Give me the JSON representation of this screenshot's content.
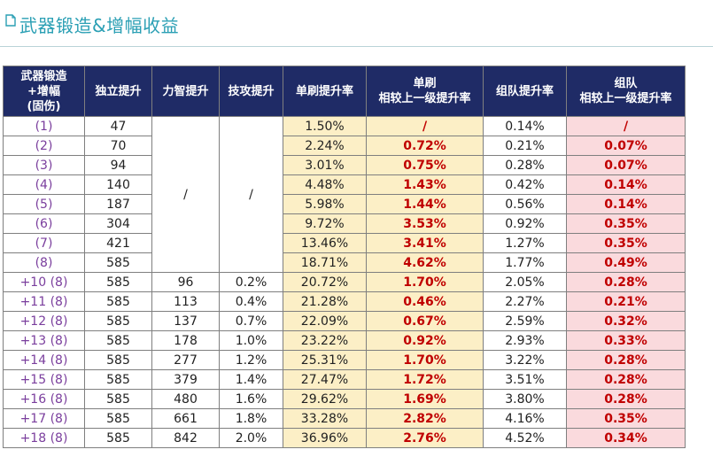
{
  "header": {
    "title": "武器锻造&增幅收益",
    "icon": "document-icon"
  },
  "table": {
    "headers": {
      "level_lines": [
        "武器锻造",
        "+增幅",
        "(固伤)"
      ],
      "independent": "独立提升",
      "int_str": "力智提升",
      "skill_atk": "技攻提升",
      "solo_rate": "单刷提升率",
      "solo_prev_lines": [
        "单刷",
        "相较上一级提升率"
      ],
      "team_rate": "组队提升率",
      "team_prev_lines": [
        "组队",
        "相较上一级提升率"
      ]
    },
    "merged_slash": "/",
    "rows": [
      {
        "level": "(1)",
        "independent": "47",
        "int_str": "",
        "skill_atk": "",
        "solo_rate": "1.50%",
        "solo_prev": "/",
        "team_rate": "0.14%",
        "team_prev": "/"
      },
      {
        "level": "(2)",
        "independent": "70",
        "int_str": "",
        "skill_atk": "",
        "solo_rate": "2.24%",
        "solo_prev": "0.72%",
        "team_rate": "0.21%",
        "team_prev": "0.07%"
      },
      {
        "level": "(3)",
        "independent": "94",
        "int_str": "",
        "skill_atk": "",
        "solo_rate": "3.01%",
        "solo_prev": "0.75%",
        "team_rate": "0.28%",
        "team_prev": "0.07%"
      },
      {
        "level": "(4)",
        "independent": "140",
        "int_str": "",
        "skill_atk": "",
        "solo_rate": "4.48%",
        "solo_prev": "1.43%",
        "team_rate": "0.42%",
        "team_prev": "0.14%"
      },
      {
        "level": "(5)",
        "independent": "187",
        "int_str": "",
        "skill_atk": "",
        "solo_rate": "5.98%",
        "solo_prev": "1.44%",
        "team_rate": "0.56%",
        "team_prev": "0.14%"
      },
      {
        "level": "(6)",
        "independent": "304",
        "int_str": "",
        "skill_atk": "",
        "solo_rate": "9.72%",
        "solo_prev": "3.53%",
        "team_rate": "0.92%",
        "team_prev": "0.35%"
      },
      {
        "level": "(7)",
        "independent": "421",
        "int_str": "",
        "skill_atk": "",
        "solo_rate": "13.46%",
        "solo_prev": "3.41%",
        "team_rate": "1.27%",
        "team_prev": "0.35%"
      },
      {
        "level": "(8)",
        "independent": "585",
        "int_str": "",
        "skill_atk": "",
        "solo_rate": "18.71%",
        "solo_prev": "4.62%",
        "team_rate": "1.77%",
        "team_prev": "0.49%"
      },
      {
        "level": "+10 (8)",
        "independent": "585",
        "int_str": "96",
        "skill_atk": "0.2%",
        "solo_rate": "20.72%",
        "solo_prev": "1.70%",
        "team_rate": "2.05%",
        "team_prev": "0.28%"
      },
      {
        "level": "+11 (8)",
        "independent": "585",
        "int_str": "113",
        "skill_atk": "0.4%",
        "solo_rate": "21.28%",
        "solo_prev": "0.46%",
        "team_rate": "2.27%",
        "team_prev": "0.21%"
      },
      {
        "level": "+12 (8)",
        "independent": "585",
        "int_str": "137",
        "skill_atk": "0.7%",
        "solo_rate": "22.09%",
        "solo_prev": "0.67%",
        "team_rate": "2.59%",
        "team_prev": "0.32%"
      },
      {
        "level": "+13 (8)",
        "independent": "585",
        "int_str": "178",
        "skill_atk": "1.0%",
        "solo_rate": "23.22%",
        "solo_prev": "0.92%",
        "team_rate": "2.93%",
        "team_prev": "0.33%"
      },
      {
        "level": "+14 (8)",
        "independent": "585",
        "int_str": "277",
        "skill_atk": "1.2%",
        "solo_rate": "25.31%",
        "solo_prev": "1.70%",
        "team_rate": "3.22%",
        "team_prev": "0.28%"
      },
      {
        "level": "+15 (8)",
        "independent": "585",
        "int_str": "379",
        "skill_atk": "1.4%",
        "solo_rate": "27.47%",
        "solo_prev": "1.72%",
        "team_rate": "3.51%",
        "team_prev": "0.28%"
      },
      {
        "level": "+16 (8)",
        "independent": "585",
        "int_str": "480",
        "skill_atk": "1.6%",
        "solo_rate": "29.62%",
        "solo_prev": "1.69%",
        "team_rate": "3.80%",
        "team_prev": "0.28%"
      },
      {
        "level": "+17 (8)",
        "independent": "585",
        "int_str": "661",
        "skill_atk": "1.8%",
        "solo_rate": "33.28%",
        "solo_prev": "2.82%",
        "team_rate": "4.16%",
        "team_prev": "0.35%"
      },
      {
        "level": "+18 (8)",
        "independent": "585",
        "int_str": "842",
        "skill_atk": "2.0%",
        "solo_rate": "36.96%",
        "solo_prev": "2.76%",
        "team_rate": "4.52%",
        "team_prev": "0.34%"
      }
    ]
  },
  "colors": {
    "title": "#2a9fb4",
    "header_bg": "#1f2b66",
    "solo_bg": "#fcefc6",
    "team_bg": "#fadadd",
    "highlight_text": "#c00000",
    "level_text": "#7a3e9d"
  }
}
